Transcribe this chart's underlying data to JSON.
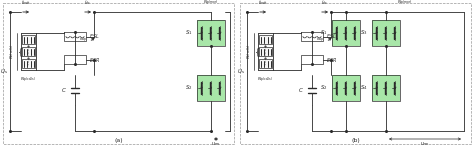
{
  "fig_width": 4.74,
  "fig_height": 1.47,
  "dpi": 100,
  "bg_color": "#ffffff",
  "line_color": "#2a2a2a",
  "green_fill": "#a8e6a8",
  "label_a": "(a)",
  "label_b": "(b)"
}
